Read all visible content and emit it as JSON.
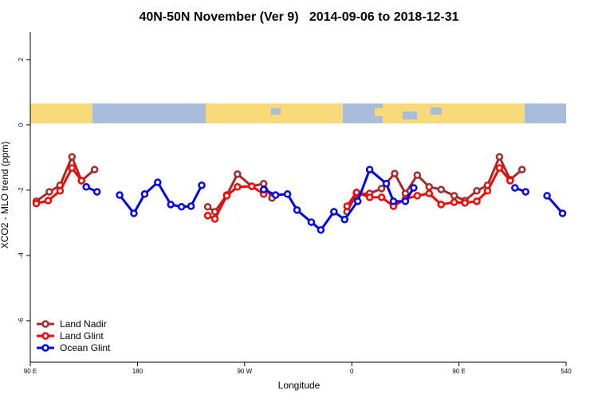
{
  "chart_data": {
    "type": "line",
    "title": "40N-50N November (Ver 9)   2014-09-06 to 2018-12-31",
    "x_label": "Longitude",
    "y_label": "XCO2 - MLO trend (ppm)",
    "xlim": [
      90,
      540
    ],
    "xticks": [
      {
        "value": 90,
        "label": "90 E"
      },
      180,
      {
        "value": 270,
        "label": "90 W"
      },
      {
        "value": 360,
        "label": "0"
      },
      {
        "value": 450,
        "label": "90 E"
      },
      540
    ],
    "ylim": [
      -7.27,
      2.85
    ],
    "yticks": [
      -6,
      -4,
      -2,
      0,
      2
    ],
    "legend": "bottom-left",
    "series": [
      {
        "name": "Land Nadir",
        "color": "#a52a2a",
        "x": [
          95,
          106,
          115,
          125,
          133,
          144,
          null,
          239,
          245,
          255,
          264,
          276,
          286,
          293,
          null,
          356,
          364,
          375,
          385,
          396,
          405,
          415,
          425,
          435,
          446,
          455,
          465,
          474,
          484,
          493,
          503
        ],
        "values": [
          -2.34,
          -2.05,
          -1.85,
          -0.98,
          -1.71,
          -1.37,
          null,
          -2.51,
          -2.66,
          -2.15,
          -1.51,
          -1.88,
          -1.8,
          -2.24,
          null,
          -2.66,
          -2.12,
          -2.1,
          -1.95,
          -1.49,
          -2.1,
          -1.54,
          -1.9,
          -1.98,
          -2.17,
          -2.32,
          -2.02,
          -1.85,
          -0.98,
          -1.68,
          -1.37
        ]
      },
      {
        "name": "Land Glint",
        "color": "#ff0000",
        "x": [
          95,
          105,
          115,
          125,
          133,
          null,
          239,
          245,
          255,
          264,
          276,
          286,
          null,
          356,
          364,
          375,
          385,
          395,
          405,
          415,
          425,
          435,
          446,
          455,
          465,
          474,
          484,
          493
        ],
        "values": [
          -2.41,
          -2.32,
          -2.02,
          -1.32,
          -1.71,
          null,
          -2.78,
          -2.88,
          -2.17,
          -1.9,
          -1.88,
          -2.12,
          null,
          -2.49,
          -2.07,
          -2.22,
          -2.22,
          -2.49,
          -2.27,
          -2.17,
          -2.1,
          -2.44,
          -2.37,
          -2.39,
          -2.34,
          -2.02,
          -1.32,
          -1.71
        ]
      },
      {
        "name": "Ocean Glint",
        "color": "#0000ee",
        "x": [
          137,
          146,
          null,
          165,
          177,
          186,
          197,
          208,
          217,
          225,
          234,
          null,
          286,
          296,
          306,
          314,
          326,
          334,
          345,
          354,
          365,
          375,
          389,
          395,
          405,
          412,
          null,
          497,
          506,
          null,
          524,
          537
        ],
        "values": [
          -1.9,
          -2.05,
          null,
          -2.15,
          -2.71,
          -2.12,
          -1.76,
          -2.44,
          -2.51,
          -2.49,
          -1.85,
          null,
          -1.98,
          -2.15,
          -2.12,
          -2.61,
          -2.98,
          -3.22,
          -2.66,
          -2.9,
          -2.34,
          -1.37,
          -1.8,
          -2.34,
          -2.34,
          -1.93,
          null,
          -1.93,
          -2.05,
          null,
          -2.17,
          -2.71
        ]
      }
    ]
  }
}
